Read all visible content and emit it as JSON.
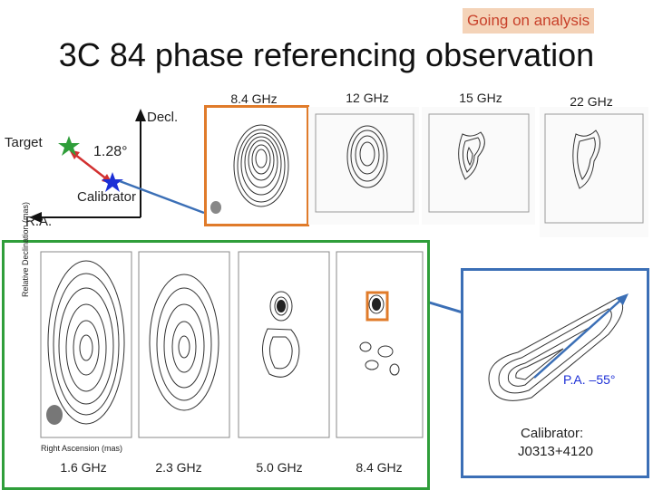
{
  "status_tag": "Going on analysis",
  "title": "3C 84 phase referencing observation",
  "geometry": {
    "decl_label": "Decl.",
    "ra_label": "R.A.",
    "target_label": "Target",
    "separation_label": "1.28°",
    "calibrator_label": "Calibrator"
  },
  "top_maps": [
    {
      "freq": "8.4 GHz"
    },
    {
      "freq": "12 GHz"
    },
    {
      "freq": "15 GHz"
    },
    {
      "freq": "22 GHz"
    }
  ],
  "bottom_maps": [
    {
      "freq": "1.6 GHz"
    },
    {
      "freq": "2.3 GHz"
    },
    {
      "freq": "5.0 GHz"
    },
    {
      "freq": "8.4 GHz"
    }
  ],
  "axis_labels": {
    "x": "Right Ascension  (mas)",
    "y": "Relative Declination  (mas)"
  },
  "calibrator_inset": {
    "pa_label": "P.A. –55°",
    "name_line1": "Calibrator:",
    "name_line2": "J0313+4120"
  },
  "colors": {
    "highlight_orange": "#e07b2a",
    "highlight_green": "#2f9e3a",
    "highlight_blue": "#3b6fb6",
    "status_text": "#c8412a",
    "status_bg": "#f4d3b8"
  }
}
